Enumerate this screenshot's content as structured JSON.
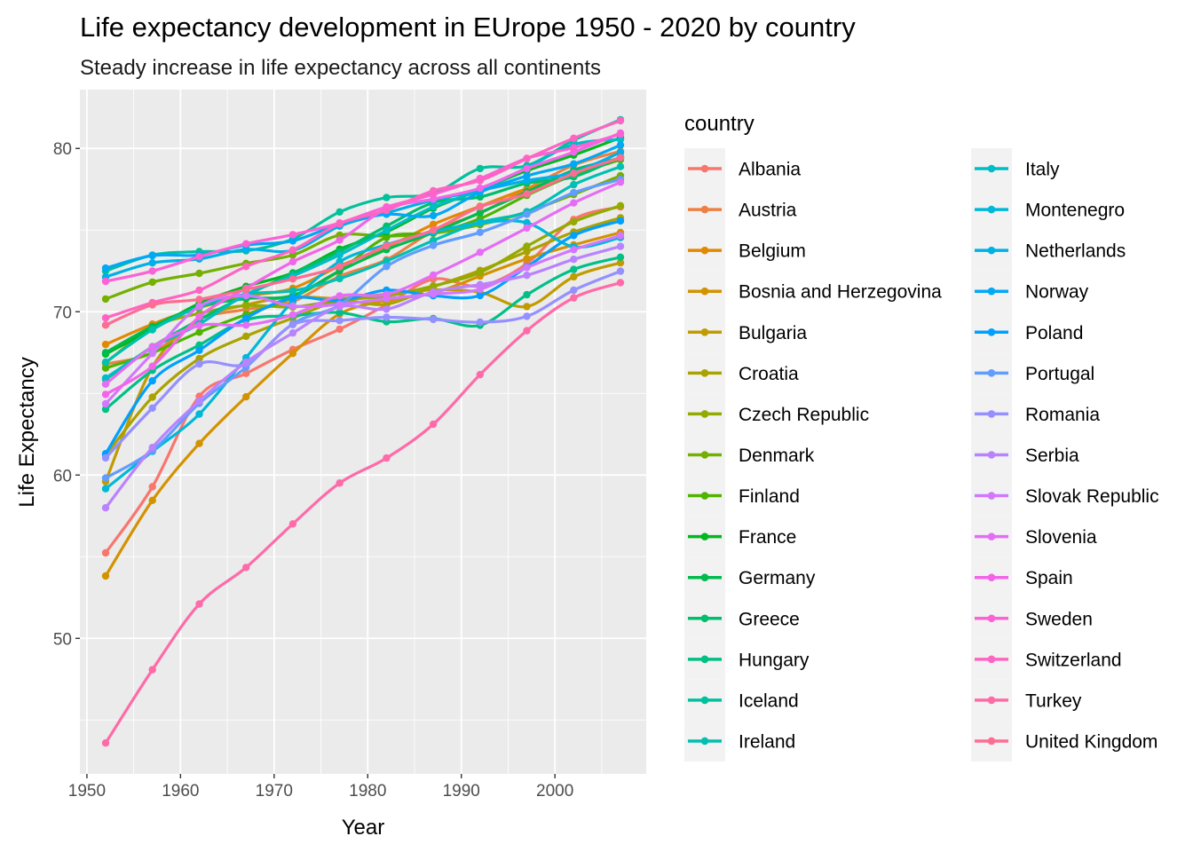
{
  "chart_data": {
    "type": "line",
    "title": "Life expectancy development in EUrope 1950 - 2020 by country",
    "subtitle": "Steady increase in life expectancy across all continents",
    "xlabel": "Year",
    "ylabel": "Life Expectancy",
    "xlim": [
      1949.25,
      2009.75
    ],
    "ylim": [
      41.7,
      83.6
    ],
    "xticks": [
      1950,
      1960,
      1970,
      1980,
      1990,
      2000
    ],
    "yticks": [
      50,
      60,
      70,
      80
    ],
    "grid": true,
    "legend_title": "country",
    "legend_position": "right",
    "x": [
      1952,
      1957,
      1962,
      1967,
      1972,
      1977,
      1982,
      1987,
      1992,
      1997,
      2002,
      2007
    ],
    "series": [
      {
        "name": "Albania",
        "color": "#F8766D",
        "values": [
          55.23,
          59.28,
          64.82,
          66.22,
          67.69,
          68.93,
          70.42,
          72.0,
          71.58,
          72.95,
          75.65,
          76.42
        ]
      },
      {
        "name": "Austria",
        "color": "#EE8043",
        "values": [
          66.8,
          67.48,
          69.54,
          70.14,
          70.63,
          72.17,
          73.18,
          74.94,
          76.04,
          77.51,
          78.98,
          79.83
        ]
      },
      {
        "name": "Belgium",
        "color": "#E38900",
        "values": [
          68.0,
          69.24,
          70.25,
          70.94,
          71.44,
          72.8,
          73.93,
          75.35,
          76.46,
          77.53,
          78.32,
          79.44
        ]
      },
      {
        "name": "Bosnia and Herzegovina",
        "color": "#D39200",
        "values": [
          53.82,
          58.45,
          61.93,
          64.79,
          67.45,
          69.86,
          70.69,
          71.14,
          72.18,
          73.24,
          74.09,
          74.85
        ]
      },
      {
        "name": "Bulgaria",
        "color": "#C09B00",
        "values": [
          59.6,
          66.61,
          69.51,
          70.42,
          70.9,
          70.81,
          71.08,
          71.34,
          71.19,
          70.32,
          72.14,
          73.0
        ]
      },
      {
        "name": "Croatia",
        "color": "#AAA200",
        "values": [
          61.21,
          64.77,
          67.13,
          68.5,
          69.61,
          70.64,
          70.46,
          71.52,
          72.53,
          73.68,
          74.88,
          75.75
        ]
      },
      {
        "name": "Czech Republic",
        "color": "#93AA00",
        "values": [
          66.87,
          69.03,
          69.9,
          70.38,
          70.29,
          70.71,
          70.96,
          71.58,
          72.4,
          74.01,
          75.51,
          76.49
        ]
      },
      {
        "name": "Denmark",
        "color": "#75AF00",
        "values": [
          70.78,
          71.81,
          72.35,
          72.96,
          73.47,
          74.69,
          74.63,
          74.8,
          75.33,
          76.11,
          77.18,
          78.33
        ]
      },
      {
        "name": "Finland",
        "color": "#4EB400",
        "values": [
          66.55,
          67.49,
          68.75,
          69.83,
          70.87,
          72.52,
          74.55,
          74.83,
          75.7,
          77.13,
          78.37,
          79.31
        ]
      },
      {
        "name": "France",
        "color": "#00B81F",
        "values": [
          67.41,
          68.93,
          70.51,
          71.55,
          72.38,
          73.83,
          74.89,
          76.34,
          77.46,
          78.64,
          79.59,
          80.66
        ]
      },
      {
        "name": "Germany",
        "color": "#00BB4E",
        "values": [
          67.5,
          69.1,
          70.3,
          70.8,
          71.0,
          72.5,
          73.8,
          74.85,
          76.07,
          77.34,
          78.67,
          79.41
        ]
      },
      {
        "name": "Greece",
        "color": "#00BE6C",
        "values": [
          65.86,
          67.86,
          69.51,
          71.0,
          72.34,
          73.68,
          75.24,
          76.67,
          77.03,
          77.87,
          78.26,
          79.48
        ]
      },
      {
        "name": "Hungary",
        "color": "#00C086",
        "values": [
          64.03,
          66.41,
          67.96,
          69.5,
          69.76,
          69.95,
          69.39,
          69.58,
          69.17,
          71.04,
          72.59,
          73.34
        ]
      },
      {
        "name": "Iceland",
        "color": "#00C19C",
        "values": [
          72.49,
          73.47,
          73.68,
          73.73,
          74.46,
          76.11,
          76.99,
          77.23,
          78.77,
          78.95,
          80.5,
          81.76
        ]
      },
      {
        "name": "Ireland",
        "color": "#00C0B2",
        "values": [
          66.91,
          68.9,
          70.29,
          71.08,
          71.28,
          72.03,
          73.1,
          74.36,
          75.47,
          76.12,
          77.78,
          78.89
        ]
      },
      {
        "name": "Italy",
        "color": "#00BDC6",
        "values": [
          65.94,
          67.81,
          69.24,
          71.06,
          72.19,
          73.48,
          74.98,
          76.42,
          77.44,
          78.82,
          80.24,
          80.55
        ]
      },
      {
        "name": "Montenegro",
        "color": "#00B8D8",
        "values": [
          59.16,
          61.45,
          63.73,
          67.18,
          70.64,
          73.07,
          74.1,
          74.87,
          75.44,
          75.45,
          73.98,
          74.54
        ]
      },
      {
        "name": "Netherlands",
        "color": "#00B0E8",
        "values": [
          72.13,
          72.99,
          73.23,
          73.82,
          73.75,
          75.24,
          76.05,
          76.83,
          77.42,
          78.03,
          78.53,
          79.76
        ]
      },
      {
        "name": "Norway",
        "color": "#00A8F5",
        "values": [
          72.67,
          73.44,
          73.47,
          74.08,
          74.34,
          75.37,
          75.97,
          75.89,
          77.32,
          78.32,
          79.05,
          80.2
        ]
      },
      {
        "name": "Poland",
        "color": "#00A0FF",
        "values": [
          61.31,
          65.77,
          67.64,
          69.61,
          70.85,
          70.67,
          71.32,
          70.98,
          70.99,
          72.75,
          74.67,
          75.56
        ]
      },
      {
        "name": "Portugal",
        "color": "#619CFF",
        "values": [
          59.82,
          61.51,
          64.39,
          66.6,
          69.26,
          70.41,
          72.77,
          74.06,
          74.86,
          75.97,
          77.29,
          78.1
        ]
      },
      {
        "name": "Romania",
        "color": "#9590FF",
        "values": [
          61.05,
          64.1,
          66.8,
          66.8,
          69.21,
          69.46,
          69.66,
          69.53,
          69.36,
          69.72,
          71.32,
          72.48
        ]
      },
      {
        "name": "Serbia",
        "color": "#B983FF",
        "values": [
          57.99,
          61.69,
          64.53,
          66.91,
          68.7,
          70.3,
          70.16,
          71.22,
          71.66,
          72.23,
          73.21,
          74.0
        ]
      },
      {
        "name": "Slovak Republic",
        "color": "#D277FF",
        "values": [
          64.36,
          67.45,
          70.33,
          70.98,
          70.35,
          70.45,
          70.8,
          71.08,
          71.38,
          72.71,
          73.8,
          74.66
        ]
      },
      {
        "name": "Slovenia",
        "color": "#E56DF5",
        "values": [
          65.57,
          67.85,
          69.15,
          69.18,
          69.82,
          70.97,
          71.06,
          72.25,
          73.64,
          75.13,
          76.66,
          77.93
        ]
      },
      {
        "name": "Spain",
        "color": "#F265E8",
        "values": [
          64.94,
          66.66,
          69.69,
          71.44,
          73.06,
          74.39,
          76.3,
          76.9,
          77.57,
          78.77,
          79.78,
          80.94
        ]
      },
      {
        "name": "Sweden",
        "color": "#FC61D5",
        "values": [
          71.86,
          72.49,
          73.37,
          74.16,
          74.72,
          75.44,
          76.42,
          77.19,
          78.16,
          79.39,
          80.04,
          80.88
        ]
      },
      {
        "name": "Switzerland",
        "color": "#FF64C2",
        "values": [
          69.62,
          70.56,
          71.32,
          72.77,
          73.78,
          75.39,
          76.21,
          77.41,
          78.03,
          79.37,
          80.62,
          81.7
        ]
      },
      {
        "name": "Turkey",
        "color": "#FF6AA9",
        "values": [
          43.59,
          48.08,
          52.1,
          54.34,
          57.01,
          59.51,
          61.04,
          63.11,
          66.15,
          68.84,
          70.85,
          71.78
        ]
      },
      {
        "name": "United Kingdom",
        "color": "#FF6C91",
        "values": [
          69.18,
          70.42,
          70.76,
          71.36,
          72.01,
          72.76,
          74.04,
          75.01,
          76.42,
          77.22,
          78.47,
          79.43
        ]
      }
    ]
  }
}
